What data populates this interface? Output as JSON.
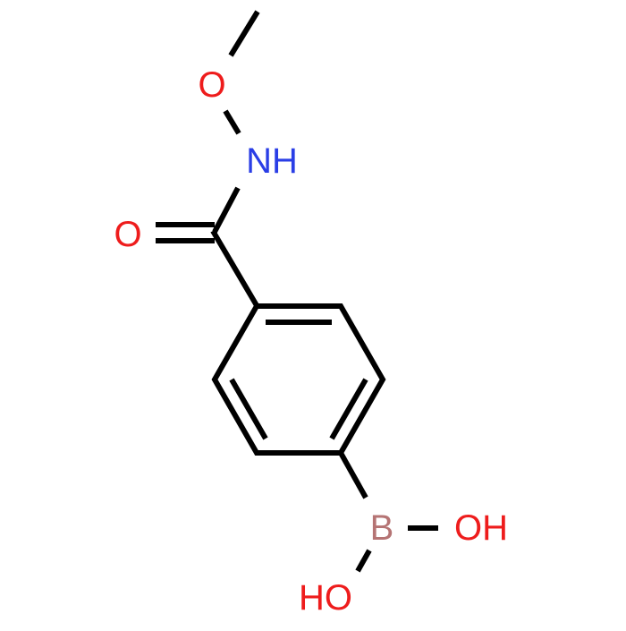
{
  "atoms": [
    {
      "label": "O"
    },
    {
      "label": "NH"
    },
    {
      "label": "O"
    },
    {
      "label": "B"
    },
    {
      "label": "OH"
    },
    {
      "label": "HO"
    }
  ]
}
